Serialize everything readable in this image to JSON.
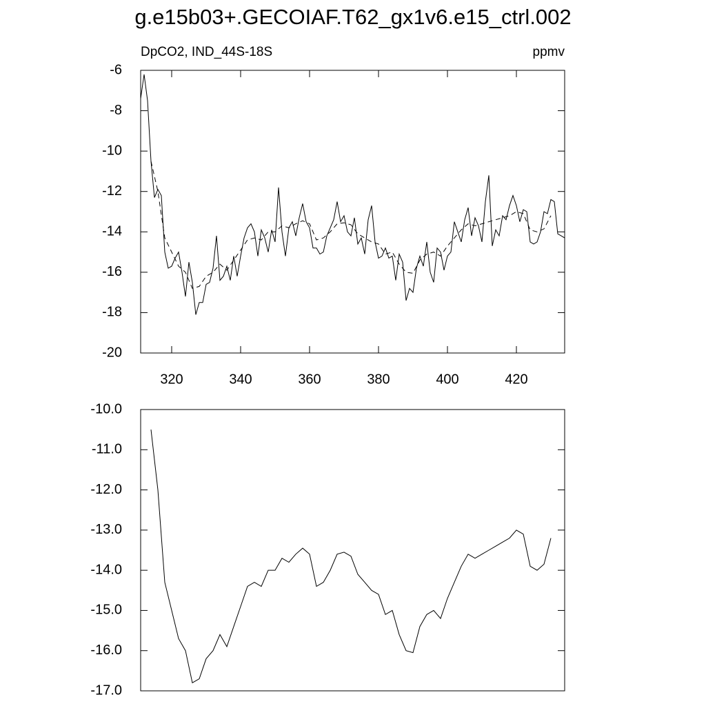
{
  "title": "g.e15b03+.GECOIAF.T62_gx1v6.e15_ctrl.002",
  "chart_data": [
    {
      "type": "line",
      "left_label": "DpCO2, IND_44S-18S",
      "right_label": "ppmv",
      "xlim": [
        311,
        434
      ],
      "xticks": [
        320,
        340,
        360,
        380,
        400,
        420
      ],
      "ylim": [
        -20,
        -6
      ],
      "yticks": [
        -6,
        -8,
        -10,
        -12,
        -14,
        -16,
        -18,
        -20
      ],
      "series": [
        {
          "color": "#000000",
          "dash": "none",
          "x": [
            311,
            312,
            313,
            314,
            315,
            316,
            317,
            318,
            319,
            320,
            321,
            322,
            323,
            324,
            325,
            326,
            327,
            328,
            329,
            330,
            331,
            332,
            333,
            334,
            335,
            336,
            337,
            338,
            339,
            340,
            341,
            342,
            343,
            344,
            345,
            346,
            347,
            348,
            349,
            350,
            351,
            352,
            353,
            354,
            355,
            356,
            357,
            358,
            359,
            360,
            361,
            362,
            363,
            364,
            365,
            366,
            367,
            368,
            369,
            370,
            371,
            372,
            373,
            374,
            375,
            376,
            377,
            378,
            379,
            380,
            381,
            382,
            383,
            384,
            385,
            386,
            387,
            388,
            389,
            390,
            391,
            392,
            393,
            394,
            395,
            396,
            397,
            398,
            399,
            400,
            401,
            402,
            403,
            404,
            405,
            406,
            407,
            408,
            409,
            410,
            411,
            412,
            413,
            414,
            415,
            416,
            417,
            418,
            419,
            420,
            421,
            422,
            423,
            424,
            425,
            426,
            427,
            428,
            429,
            430,
            431,
            432,
            433,
            434
          ],
          "values": [
            -7.4,
            -6.2,
            -7.5,
            -10.5,
            -12.3,
            -11.9,
            -12.2,
            -15.0,
            -15.8,
            -15.7,
            -15.3,
            -15.0,
            -16.0,
            -17.2,
            -15.5,
            -16.5,
            -18.1,
            -17.5,
            -17.5,
            -16.6,
            -16.5,
            -15.8,
            -14.2,
            -16.4,
            -16.2,
            -15.7,
            -16.4,
            -15.2,
            -16.2,
            -15.2,
            -14.3,
            -13.8,
            -13.6,
            -14.0,
            -15.2,
            -13.9,
            -14.3,
            -15.0,
            -13.9,
            -14.5,
            -11.8,
            -14.0,
            -15.2,
            -13.8,
            -13.5,
            -14.2,
            -13.3,
            -12.6,
            -13.5,
            -13.8,
            -14.8,
            -14.8,
            -15.1,
            -15.0,
            -14.2,
            -13.8,
            -13.4,
            -12.5,
            -13.5,
            -13.2,
            -14.0,
            -14.2,
            -13.3,
            -14.6,
            -14.3,
            -15.1,
            -13.4,
            -12.7,
            -14.5,
            -15.3,
            -15.2,
            -14.8,
            -15.3,
            -15.2,
            -16.4,
            -15.1,
            -15.5,
            -17.4,
            -16.8,
            -17.0,
            -15.8,
            -15.2,
            -15.7,
            -14.5,
            -16.0,
            -16.5,
            -14.8,
            -15.0,
            -15.9,
            -15.2,
            -15.0,
            -13.5,
            -14.0,
            -14.5,
            -13.4,
            -12.8,
            -14.2,
            -13.3,
            -13.7,
            -14.5,
            -12.5,
            -11.2,
            -14.7,
            -13.9,
            -14.2,
            -13.2,
            -13.4,
            -12.7,
            -12.2,
            -12.7,
            -13.5,
            -12.9,
            -13.0,
            -14.5,
            -14.6,
            -14.5,
            -14.0,
            -13.0,
            -13.1,
            -12.4,
            -12.5,
            -14.1,
            -14.2,
            -14.3
          ]
        },
        {
          "color": "#000000",
          "dash": "7,5",
          "x": [
            314,
            316,
            318,
            320,
            322,
            324,
            326,
            328,
            330,
            332,
            334,
            336,
            338,
            340,
            342,
            344,
            346,
            348,
            350,
            352,
            354,
            356,
            358,
            360,
            362,
            364,
            366,
            368,
            370,
            372,
            374,
            376,
            378,
            380,
            382,
            384,
            386,
            388,
            390,
            392,
            394,
            396,
            398,
            400,
            402,
            404,
            406,
            408,
            410,
            412,
            414,
            416,
            418,
            420,
            422,
            424,
            426,
            428,
            430
          ],
          "values": [
            -10.5,
            -12.0,
            -14.3,
            -15.0,
            -15.7,
            -16.0,
            -16.8,
            -16.7,
            -16.2,
            -16.0,
            -15.6,
            -15.9,
            -15.4,
            -14.9,
            -14.4,
            -14.3,
            -14.4,
            -14.0,
            -14.0,
            -13.7,
            -13.8,
            -13.6,
            -13.45,
            -13.6,
            -14.4,
            -14.3,
            -14.0,
            -13.6,
            -13.55,
            -13.65,
            -14.1,
            -14.3,
            -14.5,
            -14.6,
            -15.1,
            -15.0,
            -15.6,
            -16.0,
            -16.05,
            -15.4,
            -15.1,
            -15.0,
            -15.2,
            -14.7,
            -14.3,
            -13.9,
            -13.6,
            -13.7,
            -13.6,
            -13.5,
            -13.4,
            -13.3,
            -13.2,
            -13.0,
            -13.1,
            -13.9,
            -14.0,
            -13.85,
            -13.2
          ]
        }
      ]
    },
    {
      "type": "line",
      "xlim": [
        311,
        434
      ],
      "ylim": [
        -17,
        -10
      ],
      "yticks": [
        {
          "value": -10,
          "label": "-10.0"
        },
        {
          "value": -11,
          "label": "-11.0"
        },
        {
          "value": -12,
          "label": "-12.0"
        },
        {
          "value": -13,
          "label": "-13.0"
        },
        {
          "value": -14,
          "label": "-14.0"
        },
        {
          "value": -15,
          "label": "-15.0"
        },
        {
          "value": -16,
          "label": "-16.0"
        },
        {
          "value": -17,
          "label": "-17.0"
        }
      ],
      "series": [
        {
          "color": "#000000",
          "dash": "none",
          "x": [
            314,
            316,
            318,
            320,
            322,
            324,
            326,
            328,
            330,
            332,
            334,
            336,
            338,
            340,
            342,
            344,
            346,
            348,
            350,
            352,
            354,
            356,
            358,
            360,
            362,
            364,
            366,
            368,
            370,
            372,
            374,
            376,
            378,
            380,
            382,
            384,
            386,
            388,
            390,
            392,
            394,
            396,
            398,
            400,
            402,
            404,
            406,
            408,
            410,
            412,
            414,
            416,
            418,
            420,
            422,
            424,
            426,
            428,
            430
          ],
          "values": [
            -10.5,
            -12.0,
            -14.3,
            -15.0,
            -15.7,
            -16.0,
            -16.8,
            -16.7,
            -16.2,
            -16.0,
            -15.6,
            -15.9,
            -15.4,
            -14.9,
            -14.4,
            -14.3,
            -14.4,
            -14.0,
            -14.0,
            -13.7,
            -13.8,
            -13.6,
            -13.45,
            -13.6,
            -14.4,
            -14.3,
            -14.0,
            -13.6,
            -13.55,
            -13.65,
            -14.1,
            -14.3,
            -14.5,
            -14.6,
            -15.1,
            -15.0,
            -15.6,
            -16.0,
            -16.05,
            -15.4,
            -15.1,
            -15.0,
            -15.2,
            -14.7,
            -14.3,
            -13.9,
            -13.6,
            -13.7,
            -13.6,
            -13.5,
            -13.4,
            -13.3,
            -13.2,
            -13.0,
            -13.1,
            -13.9,
            -14.0,
            -13.85,
            -13.2
          ]
        }
      ]
    }
  ]
}
